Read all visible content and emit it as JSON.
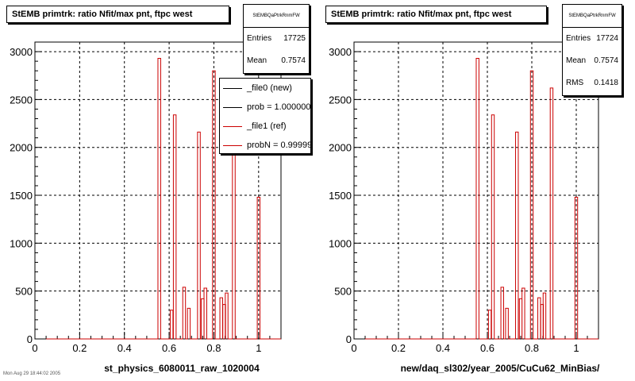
{
  "chart_data": [
    {
      "type": "bar",
      "title": "StEMB primtrk: ratio Nfit/max pnt, ftpc west",
      "xlabel": "st_physics_6080011_raw_1020004",
      "xlim": [
        0,
        1.1
      ],
      "ylim": [
        0,
        3100
      ],
      "xticks": [
        "0",
        "0.2",
        "0.4",
        "0.6",
        "0.8",
        "1"
      ],
      "yticks": [
        "0",
        "500",
        "1000",
        "1500",
        "2000",
        "2500",
        "3000"
      ],
      "grid": true,
      "stats": {
        "name": "StEMBQaPtrkRnmFW",
        "rows": [
          {
            "label": "Entries",
            "value": "17725"
          },
          {
            "label": "Mean",
            "value": "0.7574"
          }
        ]
      },
      "legend": {
        "position": "top-right",
        "entries": [
          {
            "label": "_file0 (new)",
            "color": "#000000"
          },
          {
            "label": "prob = 1.000000",
            "color": "#000000"
          },
          {
            "label": "_file1 (ref)",
            "color": "#cc0000"
          },
          {
            "label": "probN = 0.999999",
            "color": "#cc0000"
          }
        ]
      },
      "bins": [
        {
          "x": 0.556,
          "y": 2930
        },
        {
          "x": 0.583,
          "y": 0
        },
        {
          "x": 0.611,
          "y": 300
        },
        {
          "x": 0.625,
          "y": 2340
        },
        {
          "x": 0.643,
          "y": 0
        },
        {
          "x": 0.667,
          "y": 540
        },
        {
          "x": 0.688,
          "y": 320
        },
        {
          "x": 0.714,
          "y": 0
        },
        {
          "x": 0.733,
          "y": 2160
        },
        {
          "x": 0.75,
          "y": 420
        },
        {
          "x": 0.762,
          "y": 530
        },
        {
          "x": 0.778,
          "y": 0
        },
        {
          "x": 0.8,
          "y": 2800
        },
        {
          "x": 0.818,
          "y": 0
        },
        {
          "x": 0.833,
          "y": 430
        },
        {
          "x": 0.846,
          "y": 360
        },
        {
          "x": 0.857,
          "y": 480
        },
        {
          "x": 0.875,
          "y": 0
        },
        {
          "x": 0.889,
          "y": 2620
        },
        {
          "x": 0.909,
          "y": 0
        },
        {
          "x": 0.923,
          "y": 0
        },
        {
          "x": 1.0,
          "y": 1480
        }
      ],
      "line_color": "#cc0000"
    },
    {
      "type": "bar",
      "title": "StEMB primtrk: ratio Nfit/max pnt, ftpc west",
      "xlabel": "new/daq_sl302/year_2005/CuCu62_MinBias/",
      "xlim": [
        0,
        1.1
      ],
      "ylim": [
        0,
        3100
      ],
      "xticks": [
        "0",
        "0.2",
        "0.4",
        "0.6",
        "0.8",
        "1"
      ],
      "yticks": [
        "0",
        "500",
        "1000",
        "1500",
        "2000",
        "2500",
        "3000"
      ],
      "grid": true,
      "stats": {
        "name": "StEMBQaPtrkRnmFW",
        "rows": [
          {
            "label": "Entries",
            "value": "17724"
          },
          {
            "label": "Mean",
            "value": "0.7574"
          },
          {
            "label": "RMS",
            "value": "0.1418"
          }
        ]
      },
      "bins": [
        {
          "x": 0.556,
          "y": 2930
        },
        {
          "x": 0.583,
          "y": 0
        },
        {
          "x": 0.611,
          "y": 300
        },
        {
          "x": 0.625,
          "y": 2340
        },
        {
          "x": 0.643,
          "y": 0
        },
        {
          "x": 0.667,
          "y": 540
        },
        {
          "x": 0.688,
          "y": 320
        },
        {
          "x": 0.714,
          "y": 0
        },
        {
          "x": 0.733,
          "y": 2160
        },
        {
          "x": 0.75,
          "y": 420
        },
        {
          "x": 0.762,
          "y": 530
        },
        {
          "x": 0.778,
          "y": 0
        },
        {
          "x": 0.8,
          "y": 2800
        },
        {
          "x": 0.818,
          "y": 0
        },
        {
          "x": 0.833,
          "y": 430
        },
        {
          "x": 0.846,
          "y": 360
        },
        {
          "x": 0.857,
          "y": 480
        },
        {
          "x": 0.875,
          "y": 0
        },
        {
          "x": 0.889,
          "y": 2620
        },
        {
          "x": 0.909,
          "y": 0
        },
        {
          "x": 0.923,
          "y": 0
        },
        {
          "x": 1.0,
          "y": 1480
        }
      ],
      "line_color": "#cc0000"
    }
  ],
  "footer": "Mon Aug 29 18:44:02 2005"
}
